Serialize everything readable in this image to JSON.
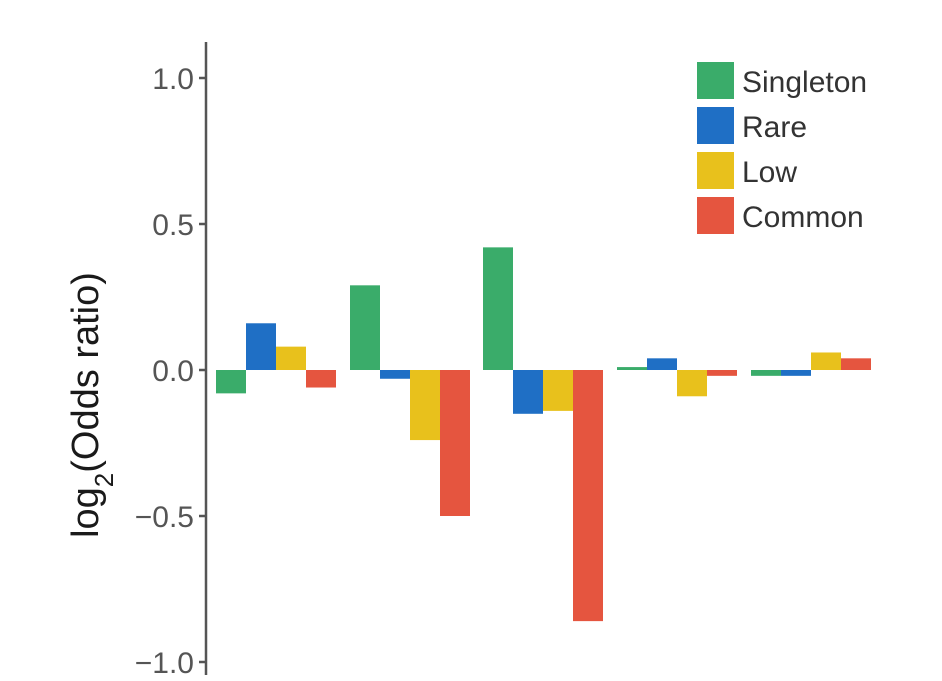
{
  "chart_data": {
    "type": "bar",
    "categories": [
      "",
      "",
      "",
      "",
      ""
    ],
    "series": [
      {
        "name": "Singleton",
        "color": "#3aac6a",
        "values": [
          -0.08,
          0.29,
          0.42,
          0.01,
          -0.02
        ]
      },
      {
        "name": "Rare",
        "color": "#1f6fc5",
        "values": [
          0.16,
          -0.03,
          -0.15,
          0.04,
          -0.02
        ]
      },
      {
        "name": "Low",
        "color": "#e8c11c",
        "values": [
          0.08,
          -0.24,
          -0.14,
          -0.09,
          0.06
        ]
      },
      {
        "name": "Common",
        "color": "#e5553f",
        "values": [
          -0.06,
          -0.5,
          -0.86,
          -0.02,
          0.04
        ]
      }
    ],
    "ylabel_main": "log",
    "ylabel_sub": "2",
    "ylabel_rest": "(Odds ratio)",
    "ylim": [
      -1.0,
      1.0
    ],
    "yticks": [
      1.0,
      0.5,
      0.0,
      -0.5,
      -1.0
    ],
    "ytick_labels": [
      "1.0",
      "0.5",
      "0.0",
      "−0.5",
      "−1.0"
    ],
    "grid": false,
    "legend_position": "top-right"
  }
}
